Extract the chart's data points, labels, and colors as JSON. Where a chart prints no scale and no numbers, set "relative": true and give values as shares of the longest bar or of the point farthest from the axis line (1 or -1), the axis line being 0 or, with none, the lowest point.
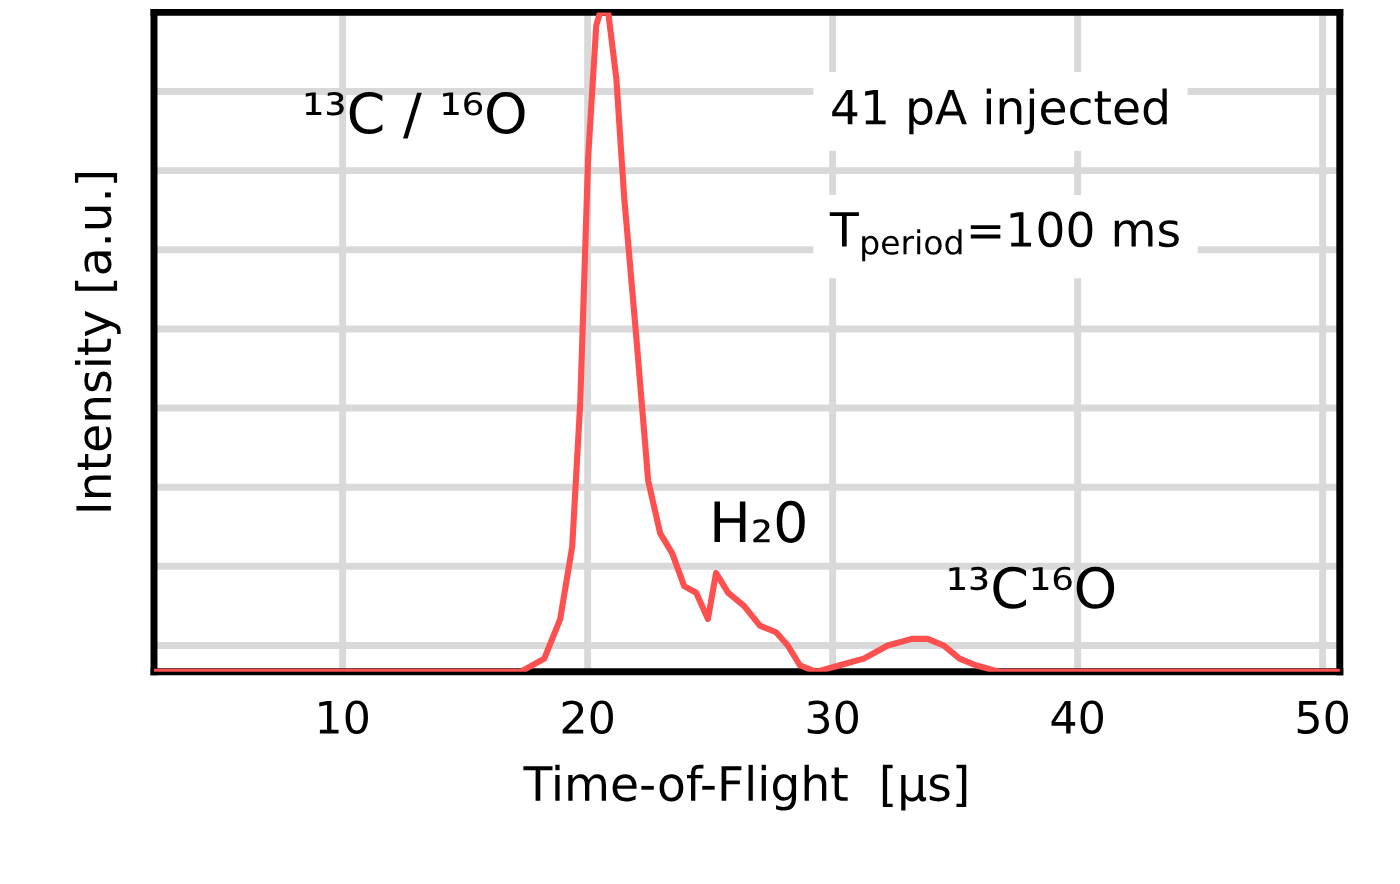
{
  "chart_data": {
    "type": "line",
    "relative": true,
    "xlabel": "Time-of-Flight  [µs]",
    "ylabel": "Intensity [a.u.]",
    "xlim": [
      2.3,
      50.7
    ],
    "xticks": [
      10,
      20,
      30,
      40,
      50
    ],
    "grid": true,
    "marker": "none",
    "line_style": "solid",
    "x": [
      2.42,
      17.25,
      18.23,
      18.88,
      19.37,
      19.7,
      20.02,
      20.35,
      20.51,
      20.84,
      21.17,
      21.49,
      21.98,
      22.47,
      22.96,
      23.45,
      23.94,
      24.43,
      24.91,
      25.24,
      25.73,
      26.38,
      27.03,
      27.69,
      28.17,
      28.66,
      29.32,
      30.29,
      31.27,
      32.25,
      33.23,
      33.88,
      34.53,
      35.18,
      35.84,
      36.81,
      38.44,
      40.73,
      42.03,
      43.33,
      45.94,
      50.6
    ],
    "series": [
      {
        "color": "#ff5050",
        "values": [
          0,
          0,
          0.02,
          0.08,
          0.19,
          0.41,
          0.78,
          0.98,
          1,
          1,
          0.9,
          0.72,
          0.51,
          0.29,
          0.21,
          0.18,
          0.13,
          0.12,
          0.08,
          0.15,
          0.12,
          0.1,
          0.07,
          0.06,
          0.04,
          0.01,
          0,
          0.01,
          0.02,
          0.04,
          0.05,
          0.05,
          0.04,
          0.02,
          0.01,
          0,
          0,
          0,
          0,
          0,
          0,
          0
        ]
      }
    ],
    "annotations": [
      "¹³C / ¹⁶O",
      "H₂0",
      "¹³C¹⁶O",
      "41 pA injected",
      "T$_{period}$=100 ms"
    ]
  }
}
